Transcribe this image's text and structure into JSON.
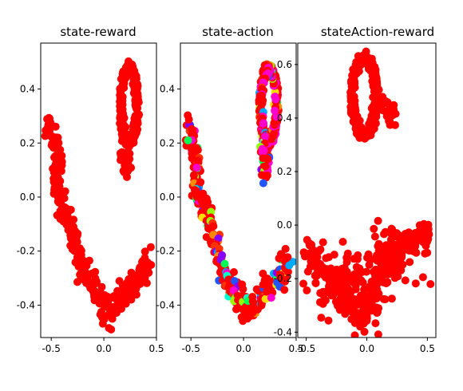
{
  "chart_data": [
    {
      "type": "scatter",
      "title": "state-reward",
      "xlim": [
        -0.6,
        0.5
      ],
      "ylim": [
        -0.52,
        0.57
      ],
      "xticks": [
        "-0.5",
        "0.0",
        "0.5"
      ],
      "xtick_values": [
        -0.5,
        0.0,
        0.5
      ],
      "yticks": [
        "-0.4",
        "-0.2",
        "0.0",
        "0.2",
        "0.4"
      ],
      "ytick_values": [
        -0.4,
        -0.2,
        0.0,
        0.2,
        0.4
      ],
      "grid": false,
      "color_mode": "reward",
      "point_color": "#ff0000",
      "shapes": [
        {
          "kind": "ring",
          "cx": 0.24,
          "cy": 0.34,
          "rx": 0.085,
          "ry": 0.145,
          "n": 130
        },
        {
          "kind": "ring",
          "cx": 0.24,
          "cy": 0.34,
          "rx": 0.065,
          "ry": 0.125,
          "n": 90
        },
        {
          "kind": "path",
          "points": [
            [
              0.2,
              0.2
            ],
            [
              0.21,
              0.14
            ],
            [
              0.2,
              0.09
            ]
          ],
          "n": 30
        },
        {
          "kind": "path",
          "points": [
            [
              -0.52,
              0.28
            ],
            [
              -0.49,
              0.2
            ],
            [
              -0.43,
              0.12
            ],
            [
              -0.47,
              0.05
            ],
            [
              -0.43,
              -0.02
            ],
            [
              -0.36,
              -0.05
            ],
            [
              -0.31,
              -0.11
            ],
            [
              -0.27,
              -0.18
            ],
            [
              -0.22,
              -0.26
            ],
            [
              -0.17,
              -0.3
            ],
            [
              -0.1,
              -0.33
            ],
            [
              -0.03,
              -0.37
            ],
            [
              0.03,
              -0.43
            ],
            [
              0.1,
              -0.4
            ],
            [
              0.17,
              -0.36
            ],
            [
              0.24,
              -0.33
            ],
            [
              0.31,
              -0.31
            ],
            [
              0.38,
              -0.28
            ],
            [
              0.41,
              -0.22
            ]
          ],
          "n": 320
        }
      ]
    },
    {
      "type": "scatter",
      "title": "state-action",
      "xlim": [
        -0.6,
        0.5
      ],
      "ylim": [
        -0.52,
        0.57
      ],
      "xticks": [
        "-0.5",
        "0.0",
        "0.5"
      ],
      "xtick_values": [
        -0.5,
        0.0,
        0.5
      ],
      "yticks": [
        "-0.4",
        "-0.2",
        "0.0",
        "0.2",
        "0.4"
      ],
      "ytick_values": [
        -0.4,
        -0.2,
        0.0,
        0.2,
        0.4
      ],
      "grid": false,
      "color_mode": "action",
      "point_color": "#ff0000",
      "palette": [
        "#ff0000",
        "#ff0000",
        "#ff3300",
        "#ff8800",
        "#ffdd00",
        "#99ff00",
        "#00ff55",
        "#00ffcc",
        "#00aaff",
        "#2255ff",
        "#8800ff",
        "#ff00cc"
      ],
      "shapes": [
        {
          "kind": "ring",
          "cx": 0.24,
          "cy": 0.34,
          "rx": 0.085,
          "ry": 0.145,
          "n": 130
        },
        {
          "kind": "ring",
          "cx": 0.24,
          "cy": 0.34,
          "rx": 0.065,
          "ry": 0.125,
          "n": 90
        },
        {
          "kind": "path",
          "points": [
            [
              0.2,
              0.2
            ],
            [
              0.21,
              0.14
            ],
            [
              0.2,
              0.09
            ]
          ],
          "n": 30
        },
        {
          "kind": "path",
          "points": [
            [
              -0.52,
              0.28
            ],
            [
              -0.49,
              0.2
            ],
            [
              -0.43,
              0.12
            ],
            [
              -0.47,
              0.05
            ],
            [
              -0.43,
              -0.02
            ],
            [
              -0.36,
              -0.05
            ],
            [
              -0.31,
              -0.11
            ],
            [
              -0.27,
              -0.18
            ],
            [
              -0.22,
              -0.26
            ],
            [
              -0.17,
              -0.3
            ],
            [
              -0.1,
              -0.33
            ],
            [
              -0.03,
              -0.37
            ],
            [
              0.03,
              -0.43
            ],
            [
              0.1,
              -0.4
            ],
            [
              0.17,
              -0.36
            ],
            [
              0.24,
              -0.33
            ],
            [
              0.31,
              -0.31
            ],
            [
              0.38,
              -0.28
            ],
            [
              0.41,
              -0.22
            ]
          ],
          "n": 320
        }
      ]
    },
    {
      "type": "scatter",
      "title": "stateAction-reward",
      "xlim": [
        -0.57,
        0.57
      ],
      "ylim": [
        -0.42,
        0.68
      ],
      "xticks": [
        "-0.5",
        "0.0",
        "0.5"
      ],
      "xtick_values": [
        -0.5,
        0.0,
        0.5
      ],
      "yticks": [
        "-0.4",
        "-0.2",
        "0.0",
        "0.2",
        "0.4",
        "0.6"
      ],
      "ytick_values": [
        -0.4,
        -0.2,
        0.0,
        0.2,
        0.4,
        0.6
      ],
      "grid": false,
      "color_mode": "reward",
      "point_color": "#ff0000",
      "shapes": [
        {
          "kind": "ring",
          "cx": -0.02,
          "cy": 0.48,
          "rx": 0.11,
          "ry": 0.15,
          "n": 120
        },
        {
          "kind": "ring",
          "cx": -0.02,
          "cy": 0.48,
          "rx": 0.085,
          "ry": 0.13,
          "n": 80
        },
        {
          "kind": "path",
          "points": [
            [
              0.05,
              0.48
            ],
            [
              0.12,
              0.45
            ],
            [
              0.18,
              0.42
            ],
            [
              0.22,
              0.38
            ]
          ],
          "n": 30
        },
        {
          "kind": "path",
          "points": [
            [
              -0.5,
              -0.1
            ],
            [
              -0.44,
              -0.12
            ],
            [
              -0.38,
              -0.15
            ],
            [
              -0.3,
              -0.2
            ],
            [
              -0.22,
              -0.23
            ],
            [
              -0.18,
              -0.28
            ],
            [
              -0.12,
              -0.3
            ],
            [
              -0.05,
              -0.35
            ],
            [
              0.02,
              -0.32
            ],
            [
              0.06,
              -0.24
            ],
            [
              0.12,
              -0.17
            ],
            [
              0.18,
              -0.14
            ],
            [
              0.24,
              -0.12
            ],
            [
              0.3,
              -0.08
            ],
            [
              0.38,
              -0.05
            ],
            [
              0.46,
              -0.02
            ],
            [
              0.5,
              -0.05
            ]
          ],
          "n": 260
        },
        {
          "kind": "cloud",
          "cx": -0.1,
          "cy": -0.24,
          "sx": 0.17,
          "sy": 0.07,
          "n": 120
        },
        {
          "kind": "cloud",
          "cx": 0.26,
          "cy": -0.1,
          "sx": 0.12,
          "sy": 0.06,
          "n": 70
        }
      ]
    }
  ]
}
